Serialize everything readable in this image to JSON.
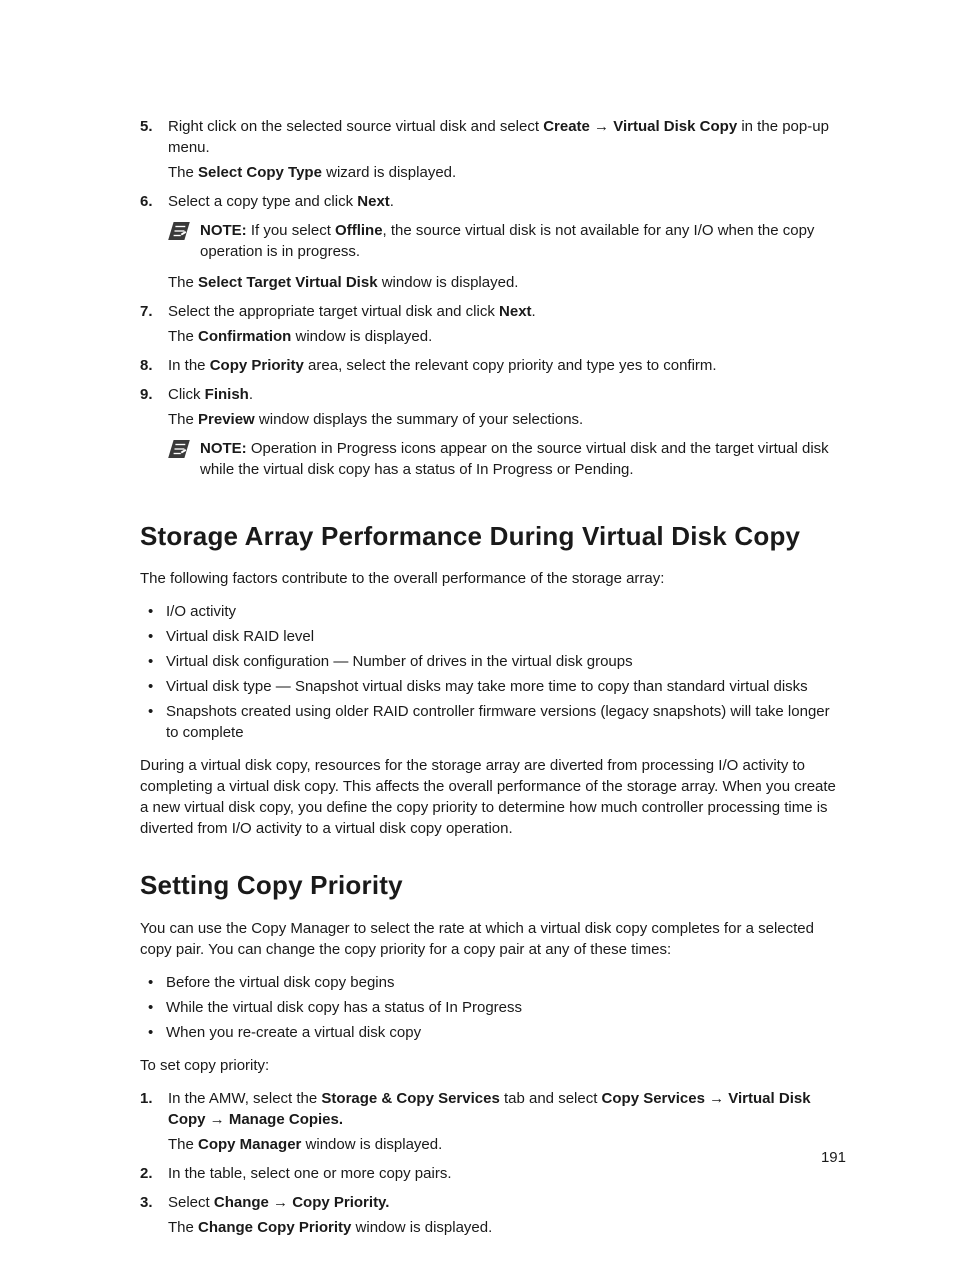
{
  "steps_a": [
    {
      "num": "5.",
      "lines": [
        {
          "segments": [
            {
              "t": "Right click on the selected source virtual disk and select "
            },
            {
              "t": "Create",
              "b": true
            },
            {
              "t": " → "
            },
            {
              "t": "Virtual Disk Copy",
              "b": true
            },
            {
              "t": " in the pop-up menu."
            }
          ]
        },
        {
          "segments": [
            {
              "t": "The "
            },
            {
              "t": "Select Copy Type",
              "b": true
            },
            {
              "t": " wizard is displayed."
            }
          ]
        }
      ]
    },
    {
      "num": "6.",
      "lines": [
        {
          "segments": [
            {
              "t": "Select a copy type and click "
            },
            {
              "t": "Next",
              "b": true
            },
            {
              "t": "."
            }
          ]
        }
      ],
      "note": {
        "segments": [
          {
            "t": "NOTE:",
            "b": true
          },
          {
            "t": " If you select "
          },
          {
            "t": "Offline",
            "b": true
          },
          {
            "t": ", the source virtual disk is not available for any I/O when the copy operation is in progress."
          }
        ]
      },
      "after_note_lines": [
        {
          "segments": [
            {
              "t": "The "
            },
            {
              "t": "Select Target Virtual Disk",
              "b": true
            },
            {
              "t": " window is displayed."
            }
          ]
        }
      ]
    },
    {
      "num": "7.",
      "lines": [
        {
          "segments": [
            {
              "t": "Select the appropriate target virtual disk and click "
            },
            {
              "t": "Next",
              "b": true
            },
            {
              "t": "."
            }
          ]
        },
        {
          "segments": [
            {
              "t": "The "
            },
            {
              "t": "Confirmation",
              "b": true
            },
            {
              "t": " window is displayed."
            }
          ]
        }
      ]
    },
    {
      "num": "8.",
      "lines": [
        {
          "segments": [
            {
              "t": "In the "
            },
            {
              "t": "Copy Priority",
              "b": true
            },
            {
              "t": " area, select the relevant copy priority and type yes to confirm."
            }
          ]
        }
      ]
    },
    {
      "num": "9.",
      "lines": [
        {
          "segments": [
            {
              "t": "Click "
            },
            {
              "t": "Finish",
              "b": true
            },
            {
              "t": "."
            }
          ]
        },
        {
          "segments": [
            {
              "t": "The "
            },
            {
              "t": "Preview",
              "b": true
            },
            {
              "t": " window displays the summary of your selections."
            }
          ]
        }
      ],
      "note": {
        "segments": [
          {
            "t": "NOTE:",
            "b": true
          },
          {
            "t": " Operation in Progress icons appear on the source virtual disk and the target virtual disk while the virtual disk copy has a status of In Progress or Pending."
          }
        ]
      }
    }
  ],
  "heading1": "Storage Array Performance During Virtual Disk Copy",
  "intro1": "The following factors contribute to the overall performance of the storage array:",
  "bullets1": [
    "I/O activity",
    "Virtual disk RAID level",
    "Virtual disk configuration — Number of drives in the virtual disk groups",
    "Virtual disk type — Snapshot virtual disks may take more time to copy than standard virtual disks",
    "Snapshots created using older RAID controller firmware versions (legacy snapshots) will take longer to complete"
  ],
  "para1": "During a virtual disk copy, resources for the storage array are diverted from processing I/O activity to completing a virtual disk copy. This affects the overall performance of the storage array. When you create a new virtual disk copy, you define the copy priority to determine how much controller processing time is diverted from I/O activity to a virtual disk copy operation.",
  "heading2": "Setting Copy Priority",
  "intro2": "You can use the Copy Manager to select the rate at which a virtual disk copy completes for a selected copy pair. You can change the copy priority for a copy pair at any of these times:",
  "bullets2": [
    "Before the virtual disk copy begins",
    "While the virtual disk copy has a status of In Progress",
    "When you re-create a virtual disk copy"
  ],
  "para2": "To set copy priority:",
  "steps_b": [
    {
      "num": "1.",
      "lines": [
        {
          "segments": [
            {
              "t": "In the AMW, select the "
            },
            {
              "t": "Storage & Copy Services",
              "b": true
            },
            {
              "t": " tab and select "
            },
            {
              "t": "Copy Services",
              "b": true
            },
            {
              "t": " → "
            },
            {
              "t": "Virtual Disk Copy",
              "b": true
            },
            {
              "t": " → "
            },
            {
              "t": "Manage Copies.",
              "b": true
            }
          ]
        },
        {
          "segments": [
            {
              "t": "The "
            },
            {
              "t": "Copy Manager",
              "b": true
            },
            {
              "t": " window is displayed."
            }
          ]
        }
      ]
    },
    {
      "num": "2.",
      "lines": [
        {
          "segments": [
            {
              "t": "In the table, select one or more copy pairs."
            }
          ]
        }
      ]
    },
    {
      "num": "3.",
      "lines": [
        {
          "segments": [
            {
              "t": "Select "
            },
            {
              "t": "Change",
              "b": true
            },
            {
              "t": " → "
            },
            {
              "t": "Copy Priority.",
              "b": true
            }
          ]
        },
        {
          "segments": [
            {
              "t": "The "
            },
            {
              "t": "Change Copy Priority",
              "b": true
            },
            {
              "t": " window is displayed."
            }
          ]
        }
      ]
    }
  ],
  "page_number": "191"
}
